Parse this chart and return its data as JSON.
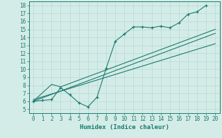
{
  "bg_color": "#d4ece7",
  "grid_color": "#b8d8d2",
  "line_color": "#1a7a6e",
  "xlabel": "Humidex (Indice chaleur)",
  "xlim": [
    -0.5,
    20.5
  ],
  "ylim": [
    4.5,
    18.5
  ],
  "xticks": [
    0,
    1,
    2,
    3,
    4,
    5,
    6,
    7,
    8,
    9,
    10,
    11,
    12,
    13,
    14,
    15,
    16,
    17,
    18,
    19,
    20
  ],
  "yticks": [
    5,
    6,
    7,
    8,
    9,
    10,
    11,
    12,
    13,
    14,
    15,
    16,
    17,
    18
  ],
  "line1_x": [
    0,
    1,
    2,
    3,
    4,
    5,
    6,
    7,
    8,
    9,
    10,
    11,
    12,
    13,
    14,
    15,
    16,
    17,
    18,
    19
  ],
  "line1_y": [
    6.0,
    6.1,
    6.2,
    7.7,
    6.8,
    5.8,
    5.3,
    6.5,
    10.1,
    13.5,
    14.4,
    15.3,
    15.3,
    15.2,
    15.4,
    15.2,
    15.8,
    16.9,
    17.2,
    18.0
  ],
  "line2_x": [
    0,
    2,
    3,
    20
  ],
  "line2_y": [
    6.0,
    8.1,
    7.8,
    15.0
  ],
  "line3_x": [
    0,
    20
  ],
  "line3_y": [
    6.0,
    14.5
  ],
  "line4_x": [
    0,
    20
  ],
  "line4_y": [
    6.2,
    13.2
  ],
  "tick_fontsize": 5.5,
  "xlabel_fontsize": 6.5
}
